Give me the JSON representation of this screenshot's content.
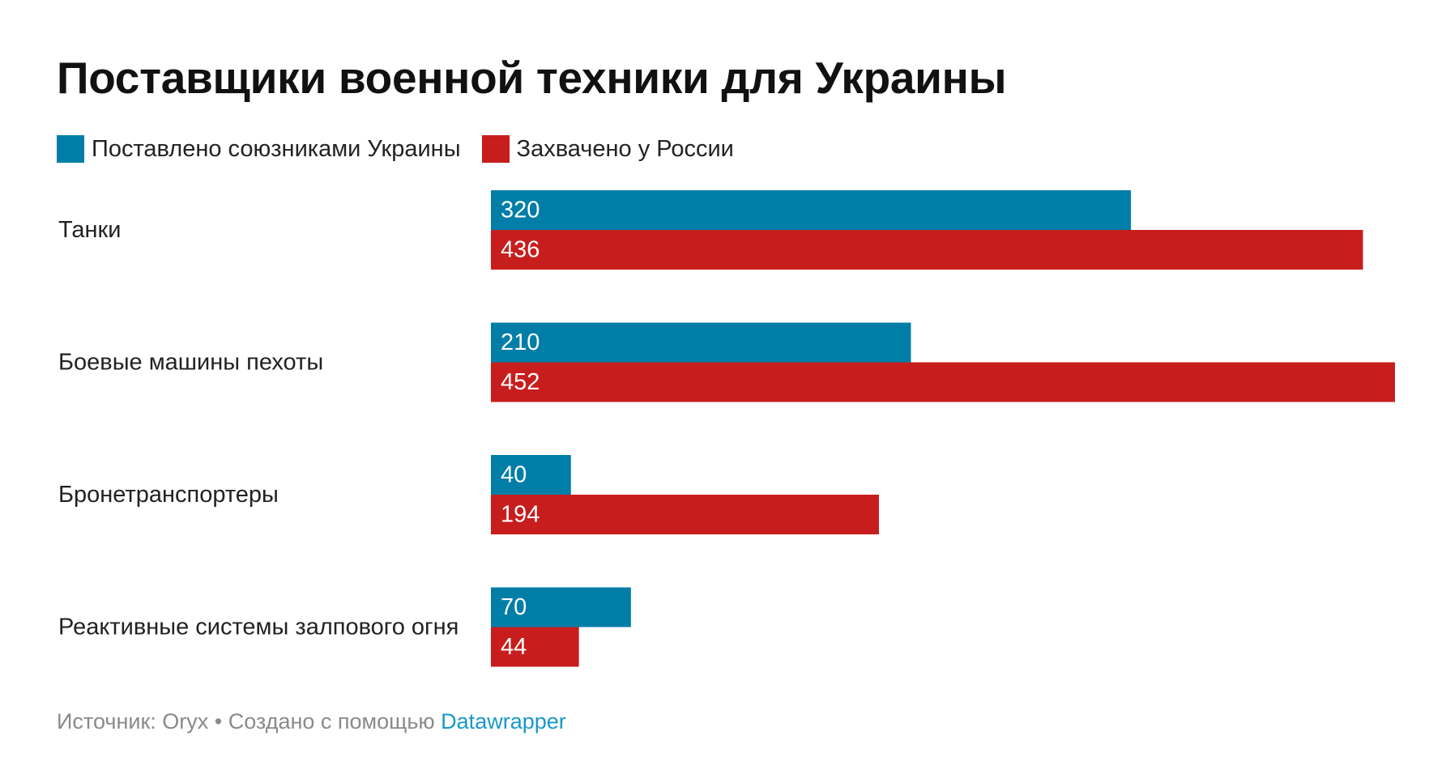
{
  "chart_data": {
    "type": "bar",
    "orientation": "horizontal",
    "title": "Поставщики военной техники для Украины",
    "categories": [
      "Танки",
      "Боевые машины пехоты",
      "Бронетранспортеры",
      "Реактивные системы залпового огня"
    ],
    "series": [
      {
        "name": "Поставлено союзниками Украины",
        "color": "#007ea7",
        "values": [
          320,
          210,
          40,
          70
        ]
      },
      {
        "name": "Захвачено у России",
        "color": "#c71e1d",
        "values": [
          436,
          452,
          194,
          44
        ]
      }
    ],
    "xlim": [
      0,
      452
    ],
    "grid": false,
    "legend_position": "top-left",
    "source_prefix": "Источник: Oryx • Создано с помощью ",
    "source_link": "Datawrapper"
  }
}
